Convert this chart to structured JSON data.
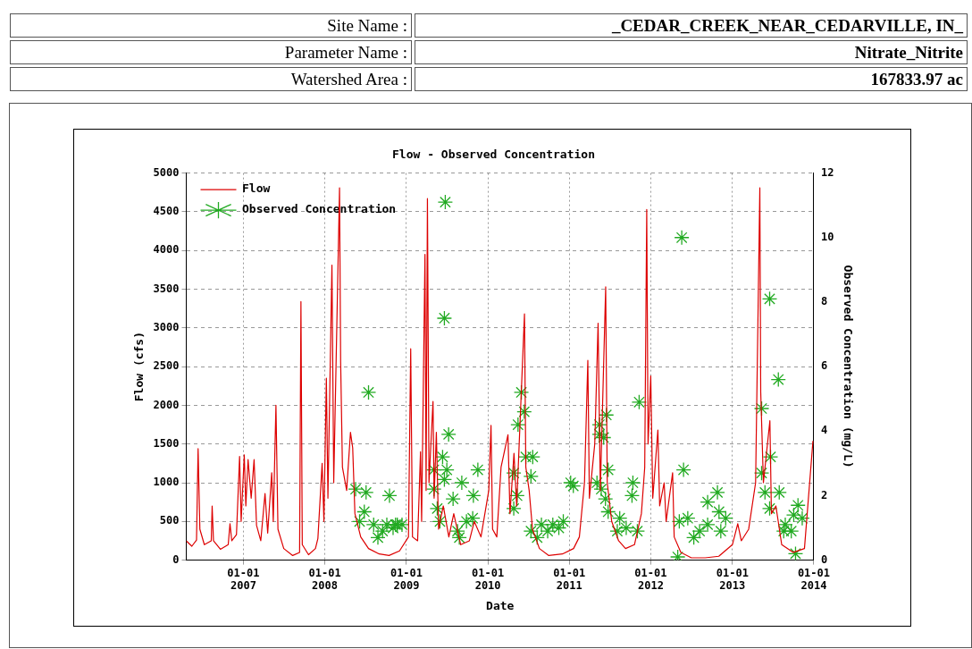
{
  "chart_data": {
    "type": "line",
    "title": "Flow - Observed Concentration",
    "xlabel": "Date",
    "ylabel": "Flow (cfs)",
    "y2label": "Observed Concentration (mg/L)",
    "annotations": [
      "Site Name :",
      "_CEDAR_CREEK_NEAR_CEDARVILLE, IN_",
      "Parameter Name :",
      "Nitrate_Nitrite",
      "Watershed Area :",
      "167833.97 ac"
    ],
    "xlim": [
      "2006-04-20",
      "2014-01-01"
    ],
    "xticks": [
      {
        "value": "2007-01-01",
        "label": "01-01\n2007"
      },
      {
        "value": "2008-01-01",
        "label": "01-01\n2008"
      },
      {
        "value": "2009-01-01",
        "label": "01-01\n2009"
      },
      {
        "value": "2010-01-01",
        "label": "01-01\n2010"
      },
      {
        "value": "2011-01-01",
        "label": "01-01\n2011"
      },
      {
        "value": "2012-01-01",
        "label": "01-01\n2012"
      },
      {
        "value": "2013-01-01",
        "label": "01-01\n2013"
      },
      {
        "value": "2014-01-01",
        "label": "01-01\n2014"
      }
    ],
    "ylim": [
      0,
      5000
    ],
    "yticks": [
      0,
      500,
      1000,
      1500,
      2000,
      2500,
      3000,
      3500,
      4000,
      4500,
      5000
    ],
    "y2lim": [
      0,
      12
    ],
    "y2ticks": [
      0,
      2,
      4,
      6,
      8,
      10,
      12
    ],
    "grid": true,
    "legend": "top left",
    "series": [
      {
        "name": "Flow",
        "type": "line",
        "color": "#dd0000",
        "marker": "none",
        "x": [
          "2006-04-20",
          "2006-05-15",
          "2006-06-05",
          "2006-06-12",
          "2006-06-20",
          "2006-07-10",
          "2006-08-10",
          "2006-08-14",
          "2006-08-20",
          "2006-09-20",
          "2006-10-25",
          "2006-11-02",
          "2006-11-10",
          "2006-12-01",
          "2006-12-15",
          "2006-12-22",
          "2007-01-05",
          "2007-01-12",
          "2007-01-22",
          "2007-02-05",
          "2007-02-18",
          "2007-03-01",
          "2007-03-20",
          "2007-04-08",
          "2007-04-20",
          "2007-05-08",
          "2007-05-15",
          "2007-05-27",
          "2007-06-05",
          "2007-07-01",
          "2007-08-10",
          "2007-09-10",
          "2007-09-16",
          "2007-09-22",
          "2007-10-20",
          "2007-11-20",
          "2007-12-01",
          "2007-12-20",
          "2007-12-28",
          "2008-01-08",
          "2008-01-15",
          "2008-02-02",
          "2008-02-10",
          "2008-03-07",
          "2008-03-12",
          "2008-03-20",
          "2008-04-08",
          "2008-04-25",
          "2008-05-05",
          "2008-05-15",
          "2008-06-10",
          "2008-07-15",
          "2008-09-01",
          "2008-10-15",
          "2008-12-01",
          "2009-01-10",
          "2009-01-20",
          "2009-01-28",
          "2009-02-20",
          "2009-03-05",
          "2009-03-10",
          "2009-03-25",
          "2009-03-30",
          "2009-04-05",
          "2009-04-12",
          "2009-04-30",
          "2009-05-05",
          "2009-05-15",
          "2009-05-25",
          "2009-06-15",
          "2009-07-10",
          "2009-08-01",
          "2009-09-01",
          "2009-10-10",
          "2009-11-01",
          "2009-12-01",
          "2010-01-05",
          "2010-01-15",
          "2010-01-22",
          "2010-02-10",
          "2010-03-01",
          "2010-04-01",
          "2010-04-10",
          "2010-04-28",
          "2010-05-10",
          "2010-06-14",
          "2010-06-20",
          "2010-07-05",
          "2010-07-20",
          "2010-08-20",
          "2010-10-01",
          "2010-12-01",
          "2011-01-20",
          "2011-02-15",
          "2011-03-10",
          "2011-03-25",
          "2011-04-01",
          "2011-04-25",
          "2011-05-10",
          "2011-05-20",
          "2011-06-13",
          "2011-06-20",
          "2011-07-10",
          "2011-08-10",
          "2011-09-10",
          "2011-10-20",
          "2011-11-20",
          "2011-12-05",
          "2011-12-14",
          "2011-12-20",
          "2012-01-01",
          "2012-01-10",
          "2012-02-02",
          "2012-02-10",
          "2012-03-01",
          "2012-03-10",
          "2012-04-08",
          "2012-04-15",
          "2012-05-15",
          "2012-07-01",
          "2012-09-01",
          "2012-11-01",
          "2013-01-01",
          "2013-01-25",
          "2013-02-10",
          "2013-03-15",
          "2013-04-15",
          "2013-05-04",
          "2013-05-08",
          "2013-05-20",
          "2013-06-18",
          "2013-06-25",
          "2013-07-15",
          "2013-08-10",
          "2013-10-01",
          "2013-11-20",
          "2013-12-28"
        ],
        "values": [
          250,
          180,
          260,
          1440,
          400,
          200,
          250,
          700,
          250,
          140,
          200,
          470,
          250,
          330,
          1340,
          500,
          1360,
          700,
          1300,
          800,
          1300,
          450,
          250,
          860,
          350,
          1130,
          500,
          2000,
          400,
          150,
          60,
          100,
          3340,
          200,
          70,
          150,
          280,
          1250,
          500,
          2350,
          800,
          3810,
          1000,
          4810,
          2560,
          1200,
          900,
          1650,
          1450,
          600,
          300,
          150,
          80,
          60,
          120,
          300,
          2730,
          300,
          250,
          1400,
          500,
          3950,
          900,
          4670,
          1000,
          2050,
          800,
          1650,
          400,
          700,
          300,
          600,
          200,
          250,
          500,
          300,
          900,
          1740,
          400,
          300,
          1200,
          1620,
          600,
          1380,
          700,
          3180,
          1200,
          900,
          400,
          150,
          60,
          80,
          150,
          300,
          1000,
          2580,
          800,
          1500,
          3060,
          900,
          3530,
          1000,
          500,
          250,
          150,
          200,
          600,
          1200,
          4530,
          1500,
          2380,
          800,
          1680,
          700,
          1000,
          500,
          1130,
          300,
          100,
          30,
          30,
          50,
          200,
          470,
          250,
          400,
          1000,
          4810,
          2170,
          1000,
          1800,
          600,
          700,
          200,
          100,
          150,
          1540
        ]
      },
      {
        "name": "Observed Concentration",
        "type": "scatter",
        "axis": "y2",
        "color": "#22aa22",
        "marker": "cross",
        "x": [
          "2008-05-18",
          "2008-06-05",
          "2008-06-26",
          "2008-07-04",
          "2008-07-15",
          "2008-08-07",
          "2008-08-26",
          "2008-09-16",
          "2008-10-05",
          "2008-10-17",
          "2008-11-02",
          "2008-11-13",
          "2008-11-21",
          "2008-12-12",
          "2009-05-04",
          "2009-05-04",
          "2009-05-19",
          "2009-05-31",
          "2009-06-12",
          "2009-06-20",
          "2009-06-20",
          "2009-06-24",
          "2009-07-01",
          "2009-07-09",
          "2009-07-29",
          "2009-08-18",
          "2009-08-26",
          "2009-09-06",
          "2009-09-27",
          "2009-10-25",
          "2009-10-28",
          "2009-11-17",
          "2010-04-27",
          "2010-04-27",
          "2010-05-12",
          "2010-05-16",
          "2010-05-31",
          "2010-06-13",
          "2010-06-20",
          "2010-07-13",
          "2010-07-13",
          "2010-07-21",
          "2010-08-10",
          "2010-08-29",
          "2010-09-26",
          "2010-10-19",
          "2010-11-15",
          "2010-12-05",
          "2011-01-07",
          "2011-01-19",
          "2011-05-05",
          "2011-05-16",
          "2011-05-16",
          "2011-05-24",
          "2011-06-04",
          "2011-06-12",
          "2011-06-16",
          "2011-06-24",
          "2011-06-24",
          "2011-08-04",
          "2011-08-15",
          "2011-09-13",
          "2011-10-09",
          "2011-10-13",
          "2011-11-02",
          "2011-11-10",
          "2012-05-01",
          "2012-05-08",
          "2012-05-19",
          "2012-05-27",
          "2012-06-15",
          "2012-07-12",
          "2012-08-07",
          "2012-09-12",
          "2012-09-12",
          "2012-10-26",
          "2012-11-02",
          "2012-11-10",
          "2012-12-02",
          "2013-05-12",
          "2013-05-12",
          "2013-05-27",
          "2013-06-17",
          "2013-06-17",
          "2013-06-21",
          "2013-07-26",
          "2013-07-30",
          "2013-08-19",
          "2013-08-26",
          "2013-09-22",
          "2013-10-03",
          "2013-10-11",
          "2013-10-22",
          "2013-11-10"
        ],
        "values": [
          2.2,
          1.2,
          1.5,
          2.1,
          5.2,
          1.1,
          0.7,
          0.9,
          1.1,
          2.0,
          1.0,
          1.1,
          1.1,
          1.1,
          2.8,
          2.2,
          1.6,
          1.2,
          3.2,
          7.5,
          2.5,
          11.1,
          2.8,
          3.9,
          1.9,
          0.9,
          0.7,
          2.4,
          1.2,
          1.3,
          2.0,
          2.8,
          2.7,
          1.6,
          2.0,
          4.2,
          5.2,
          4.6,
          3.2,
          2.6,
          0.9,
          3.2,
          0.7,
          1.1,
          0.9,
          1.1,
          1.0,
          1.2,
          2.4,
          2.3,
          2.4,
          4.2,
          3.9,
          2.2,
          3.8,
          1.9,
          4.5,
          2.8,
          1.5,
          0.9,
          1.3,
          1.0,
          2.0,
          2.4,
          0.9,
          4.9,
          0.1,
          1.2,
          10.0,
          2.8,
          1.3,
          0.7,
          0.9,
          1.1,
          1.8,
          2.1,
          1.5,
          0.9,
          1.3,
          4.7,
          2.7,
          2.1,
          8.1,
          1.6,
          3.2,
          5.6,
          2.1,
          0.9,
          1.1,
          0.9,
          1.4,
          0.2,
          1.7,
          1.3
        ]
      }
    ]
  }
}
